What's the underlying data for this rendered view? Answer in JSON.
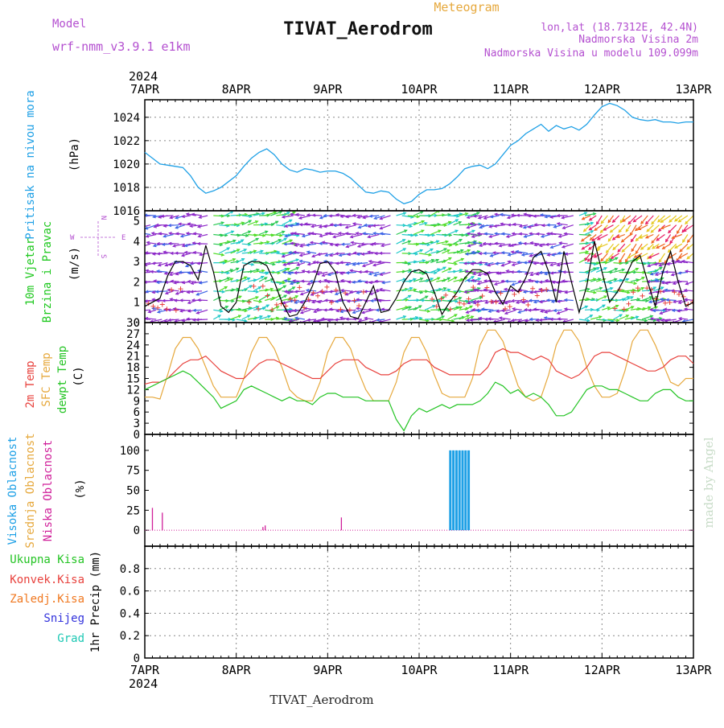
{
  "header": {
    "model_label": "Model",
    "model_name": "wrf-nmm_v3.9.1 e1km",
    "meteogram_label": "Meteogram",
    "station": "TIVAT_Aerodrom",
    "lonlat": "lon,lat (18.7312E, 42.4N)",
    "altitude": "Nadmorska Visina 2m",
    "model_altitude": "Nadmorska Visina u modelu 109.099m",
    "footer_station": "TIVAT_Aerodrom",
    "watermark": "made by Angel"
  },
  "time_axis": {
    "year": "2024",
    "ticks": [
      "7APR",
      "8APR",
      "9APR",
      "10APR",
      "11APR",
      "12APR",
      "13APR"
    ]
  },
  "colors": {
    "pressure": "#1ea0e6",
    "temp2m": "#e8413c",
    "sfc": "#e6a83c",
    "dew": "#24c424",
    "wind_label": "#1ec81e",
    "high_cloud": "#1ea0e6",
    "mid_cloud": "#e6a83c",
    "low_cloud": "#d0209a",
    "model": "#b450d0",
    "snow": "#3232dc",
    "grad": "#1ec8b4",
    "konv": "#e8413c",
    "zaledj": "#f07820"
  },
  "chart_data": [
    {
      "type": "line",
      "panel": "pressure",
      "ylabel_main": "Pritisak na nivou mora",
      "ylabel_unit": "(hPa)",
      "ylim": [
        1016,
        1025.5
      ],
      "yticks": [
        1016,
        1018,
        1020,
        1022,
        1024
      ],
      "series": [
        {
          "x": [
            0,
            1,
            2,
            3,
            4,
            5,
            6,
            7,
            8,
            9,
            10,
            11,
            12,
            13,
            14,
            15,
            16,
            17,
            18,
            19,
            20,
            21,
            22,
            23,
            24,
            25,
            26,
            27,
            28,
            29,
            30,
            31,
            32,
            33,
            34,
            35,
            36,
            37,
            38,
            39,
            40,
            41,
            42,
            43,
            44,
            45,
            46,
            47,
            48,
            49,
            50,
            51,
            52,
            53,
            54,
            55,
            56,
            57,
            58,
            59,
            60,
            61,
            62,
            63,
            64,
            65,
            66,
            67,
            68,
            69,
            70,
            71,
            72
          ],
          "values": [
            1021.0,
            1020.5,
            1020.0,
            1019.9,
            1019.8,
            1019.7,
            1019.0,
            1018.0,
            1017.5,
            1017.7,
            1018.0,
            1018.5,
            1019.0,
            1019.8,
            1020.5,
            1021.0,
            1021.3,
            1020.8,
            1020.0,
            1019.5,
            1019.3,
            1019.6,
            1019.5,
            1019.3,
            1019.4,
            1019.4,
            1019.2,
            1018.8,
            1018.2,
            1017.6,
            1017.5,
            1017.7,
            1017.6,
            1017.0,
            1016.6,
            1016.8,
            1017.4,
            1017.8,
            1017.8,
            1017.9,
            1018.3,
            1018.9,
            1019.6,
            1019.8,
            1019.9,
            1019.6,
            1020.0,
            1020.8,
            1021.6,
            1022.0,
            1022.6,
            1023.0,
            1023.4,
            1022.8,
            1023.3,
            1023.0,
            1023.2,
            1022.9,
            1023.4,
            1024.2,
            1024.9,
            1025.2,
            1025.0,
            1024.6,
            1024.0,
            1023.8,
            1023.7,
            1023.8,
            1023.6,
            1023.6,
            1023.5,
            1023.6,
            1023.6
          ]
        }
      ]
    },
    {
      "type": "line",
      "panel": "wind",
      "ylabel_main": "10m Vjetar",
      "ylabel_sub": "Brzina i Pravac",
      "ylabel_unit": "(m/s)",
      "compass": {
        "n": "N",
        "w": "W",
        "e": "E",
        "s": "S"
      },
      "ylim": [
        0,
        5.5
      ],
      "yticks": [
        0,
        1,
        2,
        3,
        4,
        5
      ],
      "series": [
        {
          "name": "speed",
          "x": [
            0,
            2,
            3,
            4,
            5,
            6,
            7,
            8,
            9,
            10,
            11,
            12,
            13,
            14,
            15,
            16,
            17,
            18,
            19,
            20,
            21,
            22,
            23,
            24,
            25,
            26,
            27,
            28,
            29,
            30,
            31,
            32,
            33,
            34,
            35,
            36,
            37,
            38,
            39,
            40,
            41,
            42,
            43,
            44,
            45,
            46,
            47,
            48,
            49,
            50,
            51,
            52,
            53,
            54,
            55,
            56,
            57,
            58,
            59,
            60,
            61,
            62,
            63,
            64,
            65,
            66,
            67,
            68,
            69,
            70,
            71,
            72
          ],
          "values": [
            0.8,
            1.2,
            2.3,
            3.0,
            3.0,
            2.8,
            2.1,
            3.8,
            2.5,
            0.8,
            0.5,
            1.0,
            2.8,
            3.0,
            3.0,
            2.8,
            2.0,
            1.0,
            0.3,
            0.4,
            1.0,
            1.8,
            2.9,
            3.0,
            2.5,
            1.0,
            0.3,
            0.2,
            1.0,
            1.8,
            0.5,
            0.6,
            1.2,
            2.0,
            2.5,
            2.6,
            2.4,
            1.5,
            0.4,
            1.0,
            1.5,
            2.2,
            2.6,
            2.6,
            2.4,
            1.5,
            0.9,
            1.8,
            1.5,
            2.2,
            3.2,
            3.5,
            2.5,
            1.0,
            3.5,
            2.0,
            0.5,
            1.8,
            4.0,
            2.5,
            1.0,
            1.5,
            2.2,
            3.0,
            3.3,
            2.0,
            0.8,
            2.5,
            3.5,
            2.0,
            0.8,
            1.0
          ]
        }
      ]
    },
    {
      "type": "line",
      "panel": "temperature",
      "ylabel_lines": [
        "2m Temp",
        "SFC Temp",
        "dewpt Temp"
      ],
      "ylabel_unit": "(C)",
      "ylim": [
        0,
        30
      ],
      "yticks": [
        0,
        3,
        6,
        9,
        12,
        15,
        18,
        21,
        24,
        27,
        30
      ],
      "series": [
        {
          "name": "2m Temp",
          "x": [
            0,
            1,
            2,
            3,
            4,
            5,
            6,
            7,
            8,
            9,
            10,
            11,
            12,
            13,
            14,
            15,
            16,
            17,
            18,
            19,
            20,
            21,
            22,
            23,
            24,
            25,
            26,
            27,
            28,
            29,
            30,
            31,
            32,
            33,
            34,
            35,
            36,
            37,
            38,
            39,
            40,
            41,
            42,
            43,
            44,
            45,
            46,
            47,
            48,
            49,
            50,
            51,
            52,
            53,
            54,
            55,
            56,
            57,
            58,
            59,
            60,
            61,
            62,
            63,
            64,
            65,
            66,
            67,
            68,
            69,
            70,
            71,
            72
          ],
          "values": [
            13.5,
            14,
            14,
            15,
            17,
            19,
            20,
            20,
            21,
            19,
            17,
            16,
            15,
            15,
            17,
            19,
            20,
            20,
            19,
            18,
            17,
            16,
            15,
            15,
            17,
            19,
            20,
            20,
            20,
            18,
            17,
            16,
            16,
            17,
            19,
            20,
            20,
            20,
            18,
            17,
            16,
            16,
            16,
            16,
            16,
            18,
            22,
            23,
            22,
            22,
            21,
            20,
            21,
            20,
            17,
            16,
            15,
            16,
            18,
            21,
            22,
            22,
            21,
            20,
            19,
            18,
            17,
            17,
            18,
            20,
            21,
            21,
            19
          ]
        },
        {
          "name": "SFC Temp",
          "x": [
            0,
            1,
            2,
            3,
            4,
            5,
            6,
            7,
            8,
            9,
            10,
            11,
            12,
            13,
            14,
            15,
            16,
            17,
            18,
            19,
            20,
            21,
            22,
            23,
            24,
            25,
            26,
            27,
            28,
            29,
            30,
            31,
            32,
            33,
            34,
            35,
            36,
            37,
            38,
            39,
            40,
            41,
            42,
            43,
            44,
            45,
            46,
            47,
            48,
            49,
            50,
            51,
            52,
            53,
            54,
            55,
            56,
            57,
            58,
            59,
            60,
            61,
            62,
            63,
            64,
            65,
            66,
            67,
            68,
            69,
            70,
            71,
            72
          ],
          "values": [
            10,
            10,
            9.5,
            16,
            23,
            26,
            26,
            23,
            18,
            13,
            10,
            10,
            10,
            15,
            22,
            26,
            26,
            23,
            18,
            12,
            10,
            9,
            9,
            14,
            22,
            26,
            26,
            23,
            17,
            12,
            9,
            9,
            9,
            14,
            22,
            26,
            26,
            22,
            16,
            11,
            10,
            10,
            10,
            15,
            24,
            28,
            28,
            25,
            19,
            13,
            10,
            9,
            10,
            16,
            24,
            28,
            28,
            25,
            18,
            13,
            10,
            10,
            11,
            17,
            25,
            28,
            28,
            24,
            19,
            14,
            13,
            15,
            15
          ]
        },
        {
          "name": "dewpt Temp",
          "x": [
            0,
            1,
            2,
            3,
            4,
            5,
            6,
            7,
            8,
            9,
            10,
            11,
            12,
            13,
            14,
            15,
            16,
            17,
            18,
            19,
            20,
            21,
            22,
            23,
            24,
            25,
            26,
            27,
            28,
            29,
            30,
            31,
            32,
            33,
            34,
            35,
            36,
            37,
            38,
            39,
            40,
            41,
            42,
            43,
            44,
            45,
            46,
            47,
            48,
            49,
            50,
            51,
            52,
            53,
            54,
            55,
            56,
            57,
            58,
            59,
            60,
            61,
            62,
            63,
            64,
            65,
            66,
            67,
            68,
            69,
            70,
            71,
            72
          ],
          "values": [
            12,
            13,
            14,
            15,
            16,
            17,
            16,
            14,
            12,
            10,
            7,
            8,
            9,
            12,
            13,
            12,
            11,
            10,
            9,
            10,
            9,
            9,
            8,
            10,
            11,
            11,
            10,
            10,
            10,
            9,
            9,
            9,
            9,
            4,
            1,
            5,
            7,
            6,
            7,
            8,
            7,
            8,
            8,
            8,
            9,
            11,
            14,
            13,
            11,
            12,
            10,
            11,
            10,
            8,
            5,
            5,
            6,
            9,
            12,
            13,
            13,
            12,
            12,
            11,
            10,
            9,
            9,
            11,
            12,
            12,
            10,
            9,
            9
          ]
        }
      ]
    },
    {
      "type": "bar",
      "panel": "clouds",
      "ylabel_lines": [
        "Visoka Oblacnost",
        "Srednja Oblacnost",
        "Niska Oblacnost"
      ],
      "ylabel_unit": "(%)",
      "ylim": [
        0,
        100
      ],
      "yticks": [
        0,
        25,
        50,
        75,
        100
      ],
      "series": [
        {
          "name": "Niska Oblacnost",
          "x": [
            1.0,
            2.3,
            15.5,
            15.8,
            25.8
          ],
          "values": [
            28,
            22,
            4,
            6,
            16
          ]
        },
        {
          "name": "Visoka Oblacnost",
          "x": [
            40.1,
            40.5,
            40.9,
            41.3,
            41.7,
            42.1,
            42.5
          ],
          "values": [
            100,
            100,
            100,
            100,
            100,
            100,
            100
          ]
        }
      ]
    },
    {
      "type": "bar",
      "panel": "precip",
      "legend": [
        "Ukupna Kisa",
        "Konvek.Kisa",
        "Zaledj.Kisa",
        "Snijeg",
        "Grad"
      ],
      "ylabel_unit": "1hr Precip (mm)",
      "ylim": [
        0,
        1
      ],
      "yticks": [
        0,
        0.2,
        0.4,
        0.6,
        0.8
      ],
      "series": []
    }
  ]
}
